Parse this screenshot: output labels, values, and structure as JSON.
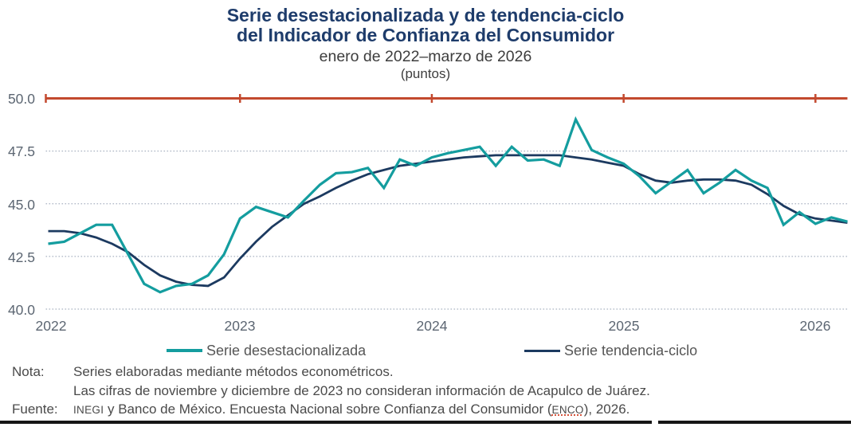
{
  "title": {
    "line1": "Serie desestacionalizada y de tendencia-ciclo",
    "line2": "del Indicador de Confianza del Consumidor"
  },
  "subtitle": "enero de 2022–marzo de 2026",
  "units_label": "(puntos)",
  "chart_data": {
    "type": "line",
    "title": "Serie desestacionalizada y de tendencia-ciclo del Indicador de Confianza del Consumidor",
    "x_unit": "month",
    "x_start": "enero 2022",
    "x_end": "marzo 2026",
    "xticks": [
      "2022",
      "2023",
      "2024",
      "2025",
      "2026"
    ],
    "yticks": [
      "50.0",
      "47.5",
      "45.0",
      "42.5",
      "40.0"
    ],
    "ylim": [
      40.0,
      50.0
    ],
    "grid": "horizontal dotted",
    "legend_position": "bottom",
    "reference_line": {
      "value": 50.0,
      "color": "#c3492e",
      "style": "solid with year ticks"
    },
    "gridline_color": "#a9b3c2",
    "series": [
      {
        "name": "Serie desestacionalizada",
        "color": "#149d9f",
        "values": [
          43.1,
          43.2,
          43.6,
          44.0,
          44.0,
          42.6,
          41.2,
          40.8,
          41.1,
          41.2,
          41.6,
          42.6,
          44.3,
          44.85,
          44.6,
          44.35,
          45.15,
          45.9,
          46.45,
          46.5,
          46.7,
          45.75,
          47.1,
          46.8,
          47.2,
          47.4,
          47.55,
          47.7,
          46.8,
          47.7,
          47.05,
          47.1,
          46.8,
          49.0,
          47.55,
          47.2,
          46.9,
          46.3,
          45.5,
          46.05,
          46.6,
          45.5,
          46.0,
          46.6,
          46.1,
          45.75,
          44.0,
          44.6,
          44.05,
          44.35,
          44.15
        ]
      },
      {
        "name": "Serie tendencia-ciclo",
        "color": "#1c3a60",
        "values": [
          43.7,
          43.7,
          43.6,
          43.4,
          43.1,
          42.7,
          42.1,
          41.6,
          41.3,
          41.15,
          41.1,
          41.5,
          42.4,
          43.2,
          43.9,
          44.45,
          45.0,
          45.35,
          45.75,
          46.1,
          46.4,
          46.6,
          46.8,
          46.9,
          47.0,
          47.1,
          47.2,
          47.25,
          47.3,
          47.3,
          47.3,
          47.3,
          47.3,
          47.2,
          47.1,
          46.95,
          46.8,
          46.4,
          46.1,
          46.0,
          46.1,
          46.15,
          46.15,
          46.1,
          45.9,
          45.45,
          44.9,
          44.5,
          44.3,
          44.2,
          44.1
        ]
      }
    ]
  },
  "legend": {
    "item1": "Serie desestacionalizada",
    "item2": "Serie tendencia-ciclo"
  },
  "notes": {
    "nota_label": "Nota:",
    "nota_line1": "Series elaboradas mediante métodos econométricos.",
    "nota_line2": "Las cifras de noviembre y diciembre de 2023 no consideran información de Acapulco de Juárez.",
    "fuente_label": "Fuente:",
    "fuente_seg1": "INEGI",
    "fuente_seg2": " y Banco de México. Encuesta Nacional sobre Confianza del Consumidor (",
    "fuente_seg3": "ENCO",
    "fuente_seg4": "), 2026."
  }
}
